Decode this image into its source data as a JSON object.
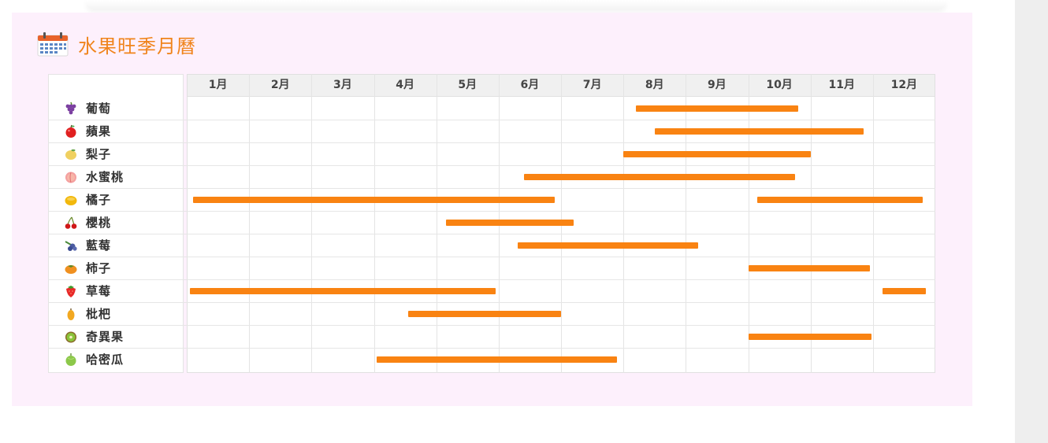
{
  "title": "水果旺季月曆",
  "colors": {
    "bar": "#f98312",
    "title": "#f0841c",
    "card_bg": "#fdf0fc"
  },
  "chart_data": {
    "type": "bar",
    "title": "水果旺季月曆",
    "x_axis": {
      "type": "month-of-year",
      "range": [
        1,
        13
      ],
      "ticks": [
        "1月",
        "2月",
        "3月",
        "4月",
        "5月",
        "6月",
        "7月",
        "8月",
        "9月",
        "10月",
        "11月",
        "12月"
      ]
    },
    "grid": true,
    "rows": [
      {
        "name": "葡萄",
        "icon": "grapes-icon",
        "ranges": [
          [
            8.2,
            10.8
          ]
        ]
      },
      {
        "name": "蘋果",
        "icon": "apple-icon",
        "ranges": [
          [
            8.5,
            11.85
          ]
        ]
      },
      {
        "name": "梨子",
        "icon": "pear-icon",
        "ranges": [
          [
            8.0,
            11.0
          ]
        ]
      },
      {
        "name": "水蜜桃",
        "icon": "peach-icon",
        "ranges": [
          [
            6.4,
            10.75
          ]
        ]
      },
      {
        "name": "橘子",
        "icon": "tangerine-icon",
        "ranges": [
          [
            1.1,
            6.9
          ],
          [
            10.15,
            12.8
          ]
        ]
      },
      {
        "name": "櫻桃",
        "icon": "cherry-icon",
        "ranges": [
          [
            5.15,
            7.2
          ]
        ]
      },
      {
        "name": "藍莓",
        "icon": "blueberry-icon",
        "ranges": [
          [
            6.3,
            9.2
          ]
        ]
      },
      {
        "name": "柿子",
        "icon": "persimmon-icon",
        "ranges": [
          [
            10.0,
            11.95
          ]
        ]
      },
      {
        "name": "草莓",
        "icon": "strawberry-icon",
        "ranges": [
          [
            1.05,
            5.95
          ],
          [
            12.15,
            12.85
          ]
        ]
      },
      {
        "name": "枇杷",
        "icon": "loquat-icon",
        "ranges": [
          [
            4.55,
            7.0
          ]
        ]
      },
      {
        "name": "奇異果",
        "icon": "kiwi-icon",
        "ranges": [
          [
            10.0,
            11.98
          ]
        ]
      },
      {
        "name": "哈密瓜",
        "icon": "melon-icon",
        "ranges": [
          [
            4.05,
            7.9
          ]
        ]
      }
    ]
  }
}
